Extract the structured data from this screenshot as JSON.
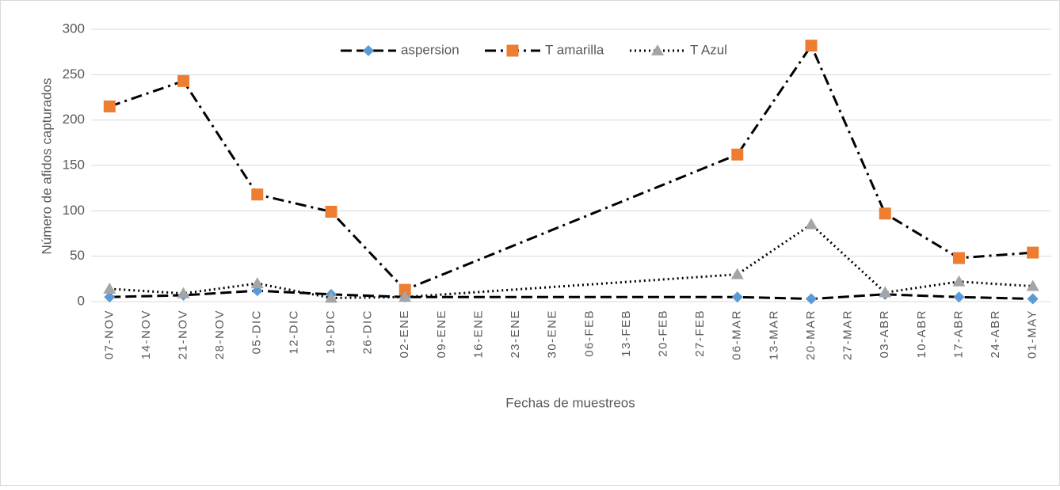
{
  "chart_data": {
    "type": "line",
    "categories": [
      "07-NOV",
      "14-NOV",
      "21-NOV",
      "28-NOV",
      "05-DIC",
      "12-DIC",
      "19-DIC",
      "26-DIC",
      "02-ENE",
      "09-ENE",
      "16-ENE",
      "23-ENE",
      "30-ENE",
      "06-FEB",
      "13-FEB",
      "20-FEB",
      "27-FEB",
      "06-MAR",
      "13-MAR",
      "20-MAR",
      "27-MAR",
      "03-ABR",
      "10-ABR",
      "17-ABR",
      "24-ABR",
      "01-MAY"
    ],
    "x": [
      "07-NOV",
      "21-NOV",
      "05-DIC",
      "19-DIC",
      "02-ENE",
      "06-MAR",
      "20-MAR",
      "03-ABR",
      "17-ABR",
      "01-MAY"
    ],
    "series": [
      {
        "name": "aspersion",
        "color": "#5b9bd5",
        "marker": "diamond",
        "dash": "dashed",
        "values": [
          5,
          7,
          12,
          8,
          5,
          5,
          3,
          8,
          5,
          3
        ]
      },
      {
        "name": "T amarilla",
        "color": "#ed7d31",
        "marker": "square",
        "dash": "dashdot",
        "values": [
          215,
          243,
          118,
          99,
          13,
          162,
          282,
          97,
          48,
          54
        ]
      },
      {
        "name": "T Azul",
        "color": "#a5a5a5",
        "marker": "triangle",
        "dash": "dotted",
        "values": [
          14,
          9,
          20,
          4,
          5,
          30,
          85,
          10,
          22,
          17
        ]
      }
    ],
    "ylabel": "Número de afidos capturados",
    "xlabel": "Fechas de muestreos",
    "ylim": [
      0,
      300
    ],
    "yticks": [
      0,
      50,
      100,
      150,
      200,
      250,
      300
    ],
    "grid": true,
    "legend": "top"
  }
}
